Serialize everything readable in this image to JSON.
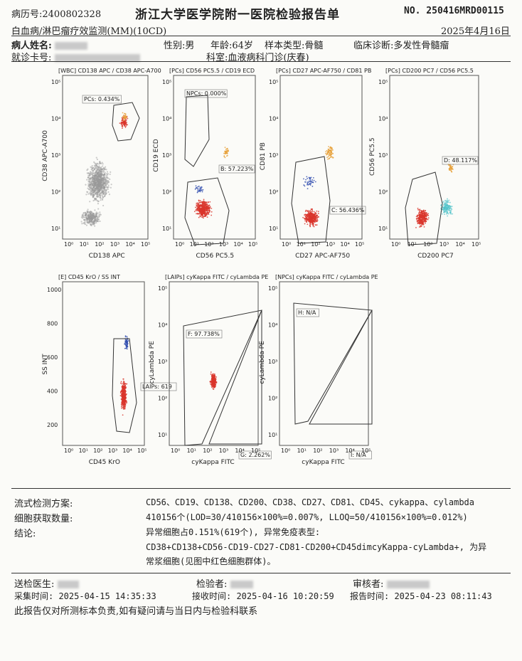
{
  "header": {
    "record_label": "病历号:",
    "record_no": "2400802328",
    "hospital_title": "浙江大学医学院附一医院检验报告单",
    "report_no": "NO. 250416MRD00115",
    "test_name": "白血病/淋巴瘤疗效监测(MM)(10CD)",
    "report_date": "2025年4月16日",
    "patient_label": "病人姓名:",
    "sex": "性别:男",
    "age": "年龄:64岁",
    "sample_type": "样本类型:骨髓",
    "diagnosis": "临床诊断:多发性骨髓瘤",
    "visit_card_label": "就诊卡号:",
    "department": "科室:血液病科门诊(庆春)"
  },
  "plots": [
    {
      "title": "[WBC] CD138 APC / CD38 APC-A700",
      "xlabel": "CD138 APC",
      "ylabel": "CD38 APC-A700",
      "gates": [
        {
          "label": "PCs: 0.434%"
        }
      ]
    },
    {
      "title": "[PCs] CD56 PC5.5 / CD19 ECD",
      "xlabel": "CD56 PC5.5",
      "ylabel": "CD19 ECD",
      "gates": [
        {
          "label": "NPCs: 0.000%"
        },
        {
          "label": "B: 57.223%"
        }
      ]
    },
    {
      "title": "[PCs] CD27 APC-AF750 / CD81 PB",
      "xlabel": "CD27 APC-AF750",
      "ylabel": "CD81 PB",
      "gates": [
        {
          "label": "C: 56.436%"
        }
      ]
    },
    {
      "title": "[PCs] CD200 PC7 / CD56 PC5.5",
      "xlabel": "CD200 PC7",
      "ylabel": "CD56 PC5.5",
      "gates": [
        {
          "label": "D: 48.117%"
        }
      ]
    },
    {
      "title": "[E] CD45 KrO / SS INT",
      "xlabel": "CD45 KrO",
      "ylabel": "SS INT",
      "gates": [
        {
          "label": "LAIPs: 619"
        }
      ]
    },
    {
      "title": "[LAIPs] cyKappa FITC / cyLambda PE",
      "xlabel": "cyKappa FITC",
      "ylabel": "cyLambda PE",
      "gates": [
        {
          "label": "F: 97.738%"
        },
        {
          "label": "G: 2.262%"
        }
      ]
    },
    {
      "title": "[NPCs] cyKappa FITC / cyLambda PE",
      "xlabel": "cyKappa FITC",
      "ylabel": "cyLambda PE",
      "gates": [
        {
          "label": "H: N/A"
        },
        {
          "label": "I: N/A"
        }
      ]
    }
  ],
  "log_ticks": [
    "10⁰",
    "10¹",
    "10²",
    "10³",
    "10⁴",
    "10⁵"
  ],
  "ss_ticks": [
    "1000",
    "800",
    "600",
    "400",
    "200"
  ],
  "results": {
    "scheme_label": "流式检测方案:",
    "scheme_value": "CD56、CD19、CD138、CD200、CD38、CD27、CD81、CD45、cykappa、cylambda",
    "cells_label": "细胞获取数量:",
    "cells_value": "410156个(LOD=30/410156×100%=0.007%, LLOQ=50/410156×100%=0.012%)",
    "conclusion_label": "结论:",
    "conclusion_line1": "异常细胞占0.151%(619个), 异常免疫表型:",
    "conclusion_line2": "CD38+CD138+CD56-CD19-CD27-CD81-CD200+CD45dimcyKappa-cyLambda+, 为异",
    "conclusion_line3": "常浆细胞(见图中红色细胞群体)。"
  },
  "footer": {
    "sender_label": "送检医生:",
    "checker_label": "检验者:",
    "reviewer_label": "审核者:",
    "collect_time": "采集时间: 2025-04-15 14:35:33",
    "receive_time": "接收时间: 2025-04-16 10:20:59",
    "report_time": "报告时间: 2025-04-23 08:11:43",
    "disclaimer": "此报告仅对所测标本负责,如有疑问请与当日内与检验科联系"
  },
  "colors": {
    "red": "#d9352b",
    "orange": "#e8a23c",
    "blue": "#3450b0",
    "gray": "#9a9a9a",
    "cyan": "#4fc3c9"
  }
}
